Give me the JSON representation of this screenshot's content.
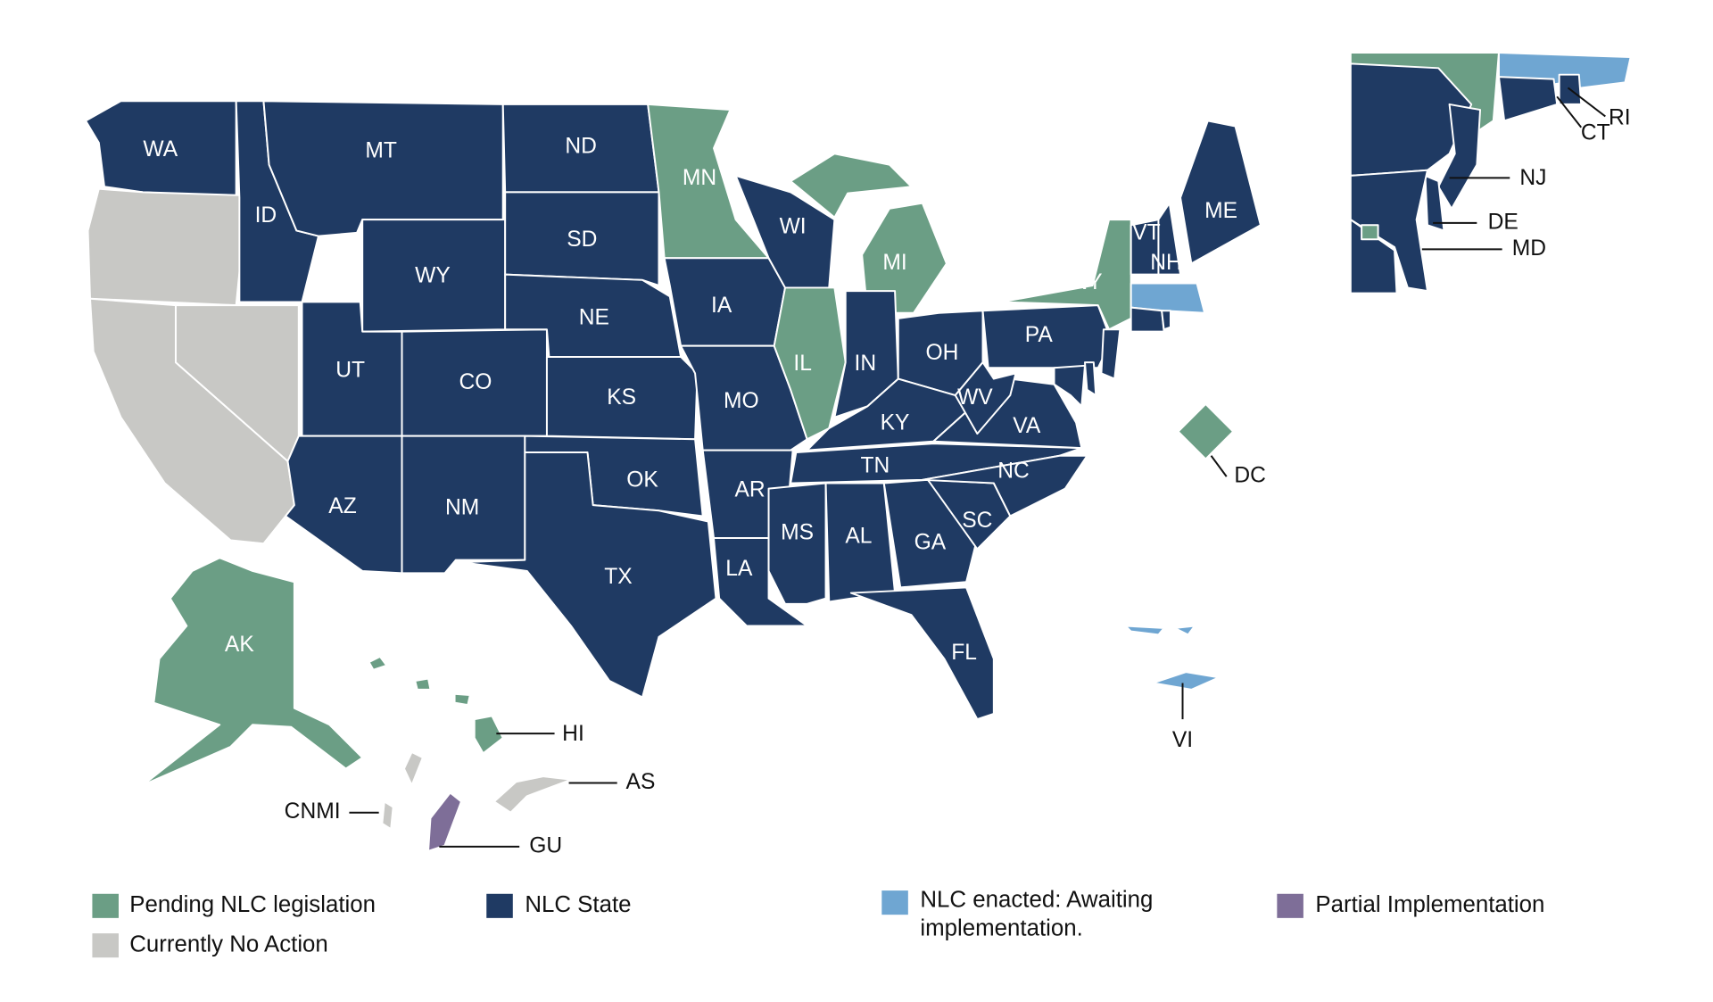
{
  "legend": [
    {
      "label": "Pending NLC legislation",
      "color": "#6b9e85"
    },
    {
      "label": "Currently No Action",
      "color": "#c8c8c5"
    },
    {
      "label": "NLC State",
      "color": "#1f3a63"
    },
    {
      "label": "NLC enacted: Awaiting implementation.",
      "color": "#6fa6d2"
    },
    {
      "label": "Partial Implementation",
      "color": "#7e6e98"
    }
  ],
  "regions": [
    {
      "label": "WA",
      "status": 2
    },
    {
      "label": null,
      "status": 1
    },
    {
      "label": null,
      "status": 1
    },
    {
      "label": null,
      "status": 1
    },
    {
      "label": "ID",
      "status": 2
    },
    {
      "label": "MT",
      "status": 2
    },
    {
      "label": "WY",
      "status": 2
    },
    {
      "label": "UT",
      "status": 2
    },
    {
      "label": "CO",
      "status": 2
    },
    {
      "label": "AZ",
      "status": 2
    },
    {
      "label": "NM",
      "status": 2
    },
    {
      "label": "ND",
      "status": 2
    },
    {
      "label": "SD",
      "status": 2
    },
    {
      "label": "NE",
      "status": 2
    },
    {
      "label": "KS",
      "status": 2
    },
    {
      "label": "OK",
      "status": 2
    },
    {
      "label": "TX",
      "status": 2
    },
    {
      "label": "MN",
      "status": 0
    },
    {
      "label": "IA",
      "status": 2
    },
    {
      "label": "MO",
      "status": 2
    },
    {
      "label": "AR",
      "status": 2
    },
    {
      "label": "LA",
      "status": 2
    },
    {
      "label": "WI",
      "status": 2
    },
    {
      "label": "IL",
      "status": 0
    },
    {
      "label": "MI",
      "status": 0
    },
    {
      "label": "IN",
      "status": 2
    },
    {
      "label": "OH",
      "status": 2
    },
    {
      "label": "KY",
      "status": 2
    },
    {
      "label": "TN",
      "status": 2
    },
    {
      "label": "MS",
      "status": 2
    },
    {
      "label": "AL",
      "status": 2
    },
    {
      "label": "GA",
      "status": 2
    },
    {
      "label": "FL",
      "status": 2
    },
    {
      "label": "SC",
      "status": 2
    },
    {
      "label": "NC",
      "status": 2
    },
    {
      "label": "VA",
      "status": 2
    },
    {
      "label": "WV",
      "status": 2
    },
    {
      "label": "PA",
      "status": 2
    },
    {
      "label": "NY",
      "status": 0
    },
    {
      "label": "VT",
      "status": 2
    },
    {
      "label": "NH",
      "status": 2
    },
    {
      "label": "ME",
      "status": 2
    },
    {
      "label": null,
      "status": 3
    },
    {
      "label": "CT",
      "status": 2
    },
    {
      "label": "RI",
      "status": 2
    },
    {
      "label": "NJ",
      "status": 2
    },
    {
      "label": "DE",
      "status": 2
    },
    {
      "label": "MD",
      "status": 2
    },
    {
      "label": "DC",
      "status": 0
    },
    {
      "label": "AK",
      "status": 0
    },
    {
      "label": "HI",
      "status": 0
    },
    {
      "label": "AS",
      "status": 1
    },
    {
      "label": "CNMI",
      "status": 1
    },
    {
      "label": "GU",
      "status": 4
    },
    {
      "label": "VI",
      "status": 3
    },
    {
      "label": null,
      "status": 3
    }
  ]
}
